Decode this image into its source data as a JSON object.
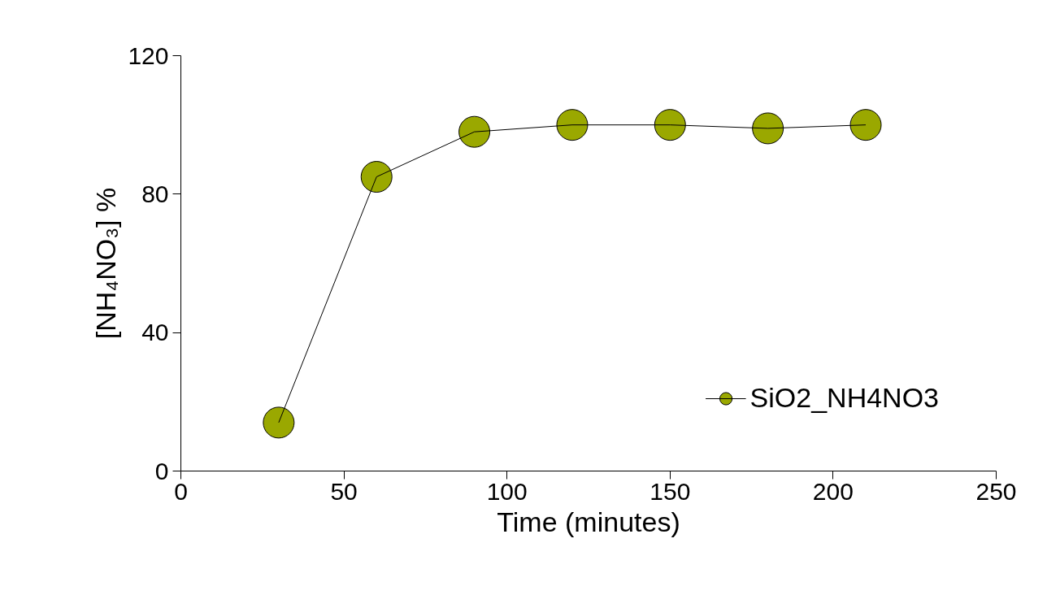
{
  "chart_data": {
    "type": "line",
    "xlabel": "Time (minutes)",
    "ylabel": "[NH₄NO₃] %",
    "x": [
      30,
      60,
      90,
      120,
      150,
      180,
      210
    ],
    "series": [
      {
        "name": "SiO2_NH4NO3",
        "color": "#9aa800",
        "values": [
          14,
          85,
          98,
          100,
          100,
          99,
          100
        ]
      }
    ],
    "xlim": [
      0,
      250
    ],
    "xticks": [
      0,
      50,
      100,
      150,
      200,
      250
    ],
    "ylim": [
      0,
      120
    ],
    "yticks": [
      0,
      40,
      80,
      120
    ],
    "grid": false,
    "legend": "bottom right",
    "marker": "circle",
    "line_style": "solid"
  }
}
